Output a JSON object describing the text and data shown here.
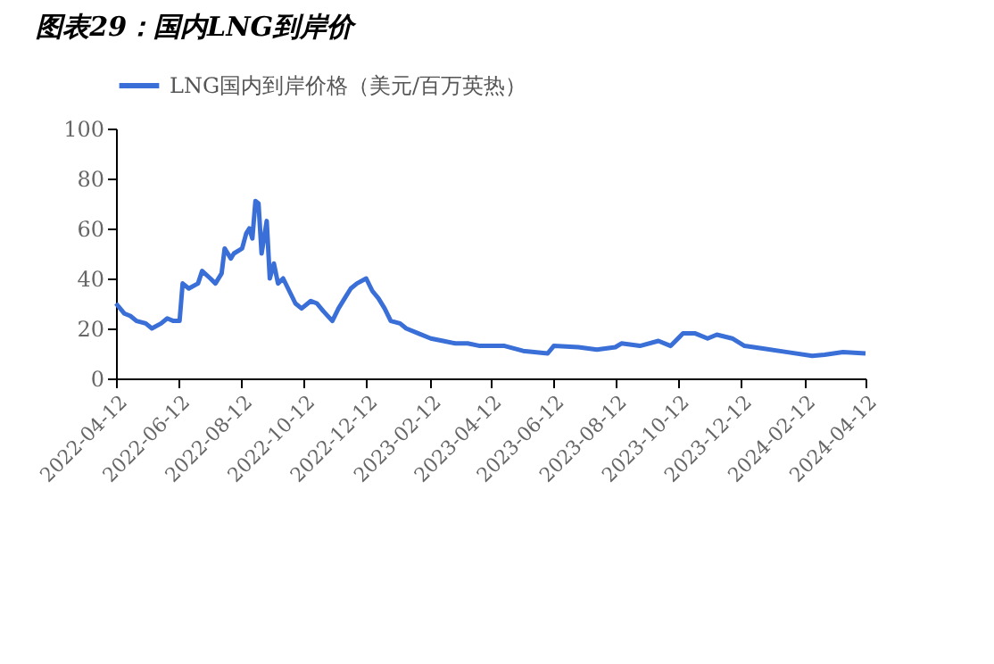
{
  "chart_data": {
    "type": "line",
    "title": "图表29：国内LNG到岸价",
    "x": [
      "2022-04-12",
      "2022-04-20",
      "2022-04-26",
      "2022-05-02",
      "2022-05-11",
      "2022-05-17",
      "2022-05-26",
      "2022-06-01",
      "2022-06-07",
      "2022-06-13",
      "2022-06-16",
      "2022-06-22",
      "2022-07-01",
      "2022-07-05",
      "2022-07-13",
      "2022-07-18",
      "2022-07-24",
      "2022-07-27",
      "2022-08-02",
      "2022-08-05",
      "2022-08-13",
      "2022-08-17",
      "2022-08-20",
      "2022-08-23",
      "2022-08-26",
      "2022-08-29",
      "2022-09-01",
      "2022-09-06",
      "2022-09-09",
      "2022-09-13",
      "2022-09-17",
      "2022-09-22",
      "2022-09-28",
      "2022-10-04",
      "2022-10-10",
      "2022-10-19",
      "2022-10-25",
      "2022-10-31",
      "2022-11-09",
      "2022-11-15",
      "2022-11-21",
      "2022-11-27",
      "2022-12-03",
      "2022-12-12",
      "2022-12-18",
      "2022-12-24",
      "2022-12-30",
      "2023-01-05",
      "2023-01-14",
      "2023-01-20",
      "2023-02-01",
      "2023-02-13",
      "2023-02-25",
      "2023-03-09",
      "2023-03-21",
      "2023-04-02",
      "2023-04-26",
      "2023-05-14",
      "2023-06-07",
      "2023-06-13",
      "2023-07-07",
      "2023-07-25",
      "2023-08-12",
      "2023-08-18",
      "2023-09-05",
      "2023-09-23",
      "2023-10-05",
      "2023-10-17",
      "2023-10-29",
      "2023-11-10",
      "2023-11-19",
      "2023-12-04",
      "2023-12-16",
      "2024-01-03",
      "2024-01-27",
      "2024-02-20",
      "2024-03-03",
      "2024-03-21",
      "2024-04-12"
    ],
    "series": [
      {
        "name": "LNG国内到岸价格（美元/百万英热）",
        "color": "#3a6fd8",
        "values": [
          30,
          26,
          25,
          23,
          22,
          20,
          22,
          24,
          23,
          23,
          38,
          36,
          38,
          43,
          40,
          38,
          42,
          52,
          48,
          50,
          52,
          58,
          60,
          56,
          71,
          70,
          50,
          63,
          40,
          46,
          38,
          40,
          35,
          30,
          28,
          31,
          30,
          27,
          23,
          28,
          32,
          36,
          38,
          40,
          35,
          32,
          28,
          23,
          22,
          20,
          18,
          16,
          15,
          14,
          14,
          13,
          13,
          11,
          10,
          13,
          12.5,
          11.5,
          12.5,
          14,
          13,
          15,
          13,
          18,
          18,
          16,
          17.5,
          16,
          13,
          12,
          10.5,
          9,
          9.5,
          10.5,
          10
        ]
      }
    ],
    "xlim": [
      "2022-04-12",
      "2024-04-12"
    ],
    "xticks": [
      "2022-04-12",
      "2022-06-12",
      "2022-08-12",
      "2022-10-12",
      "2022-12-12",
      "2023-02-12",
      "2023-04-12",
      "2023-06-12",
      "2023-08-12",
      "2023-10-12",
      "2023-12-12",
      "2024-02-12",
      "2024-04-12"
    ],
    "ylim": [
      0,
      100
    ],
    "yticks": [
      0,
      20,
      40,
      60,
      80,
      100
    ],
    "grid": false,
    "legend": "top",
    "line_style": "solid",
    "marker": "none"
  }
}
